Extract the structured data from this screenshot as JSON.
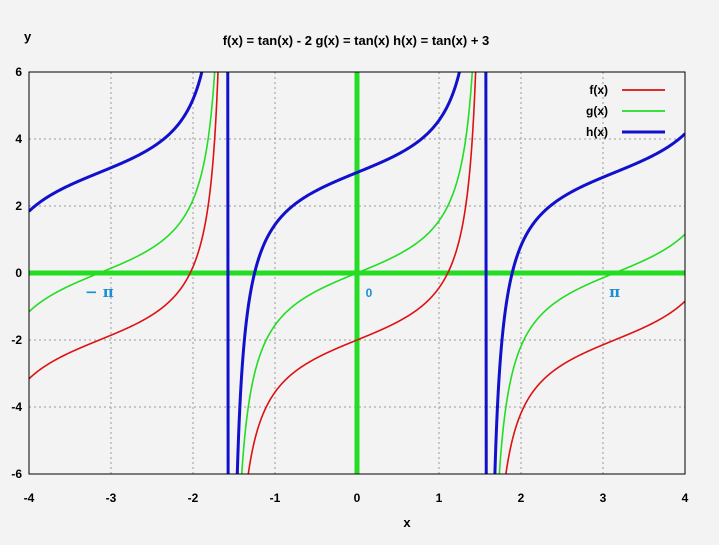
{
  "chart_data": {
    "type": "line",
    "title": "f(x) =  tan(x) - 2  g(x) =   tan(x)   h(x) =  tan(x) + 3",
    "xlabel": "x",
    "ylabel": "y",
    "xlim": [
      -4,
      4
    ],
    "ylim": [
      -6,
      6
    ],
    "x_ticks": [
      -4,
      -3,
      -2,
      -1,
      0,
      1,
      2,
      3,
      4
    ],
    "y_ticks": [
      -6,
      -4,
      -2,
      0,
      2,
      4,
      6
    ],
    "grid": true,
    "legend_position": "top-right",
    "series": [
      {
        "name": "f(x)",
        "expression": "tan(x) - 2",
        "offset": -2,
        "color": "#dd1111"
      },
      {
        "name": "g(x)",
        "expression": "tan(x)",
        "offset": 0,
        "color": "#22dd22"
      },
      {
        "name": "h(x)",
        "expression": "tan(x) + 3",
        "offset": 3,
        "color": "#1111cc"
      }
    ],
    "axes_color": "#22dd22",
    "annotations": [
      {
        "text": "− π",
        "x": -3.14159
      },
      {
        "text": "0",
        "x": 0
      },
      {
        "text": "π",
        "x": 3.14159
      }
    ],
    "annotation_color": "#1a8fd6"
  }
}
